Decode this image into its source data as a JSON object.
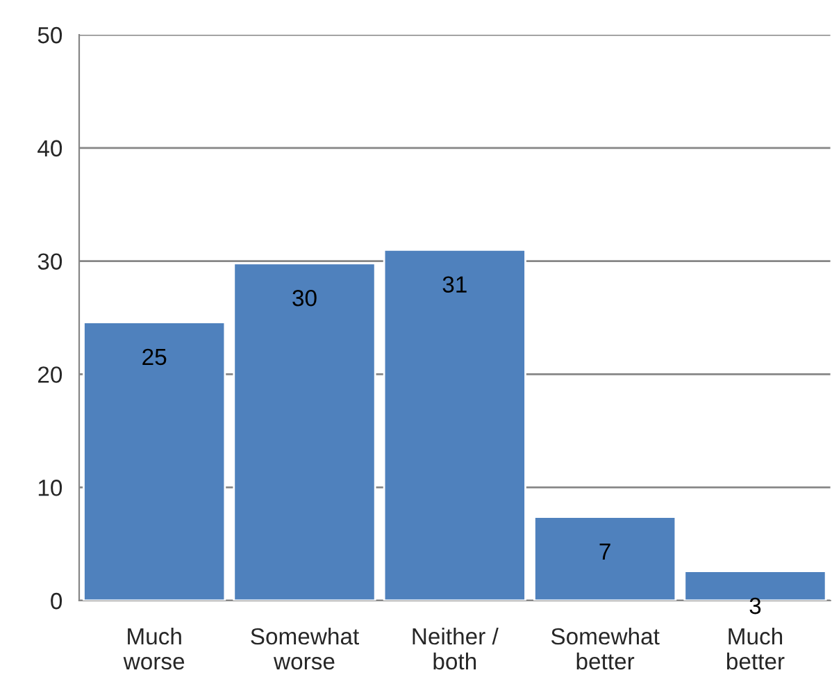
{
  "chart_data": {
    "type": "bar",
    "categories": [
      "Much worse",
      "Somewhat worse",
      "Neither / both",
      "Somewhat better",
      "Much better"
    ],
    "values": [
      24.6,
      29.8,
      31,
      7.4,
      2.6
    ],
    "value_labels": [
      "25",
      "30",
      "31",
      "7",
      "3"
    ],
    "color": "#4f81bd",
    "ylim": [
      0,
      50
    ],
    "yticks": [
      0,
      10,
      20,
      30,
      40,
      50
    ],
    "grid": "y",
    "legend": false
  }
}
